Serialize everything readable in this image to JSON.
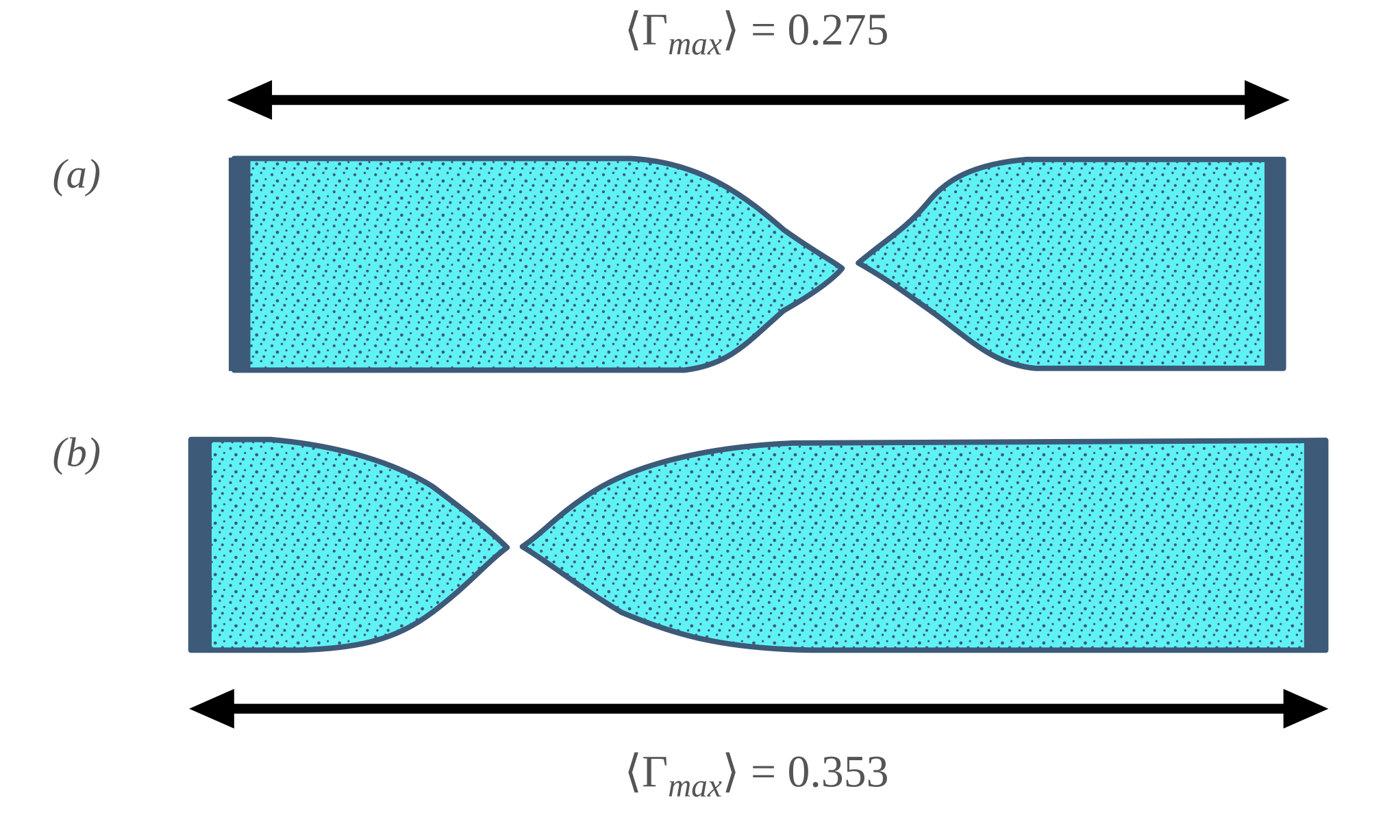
{
  "panels": [
    {
      "label": "(a)",
      "annotation": {
        "prefix": "⟨Γ",
        "subscript": "max",
        "suffix": "⟩ = 0.275"
      }
    },
    {
      "label": "(b)",
      "annotation": {
        "prefix": "⟨Γ",
        "subscript": "max",
        "suffix": "⟩ = 0.353"
      }
    }
  ]
}
